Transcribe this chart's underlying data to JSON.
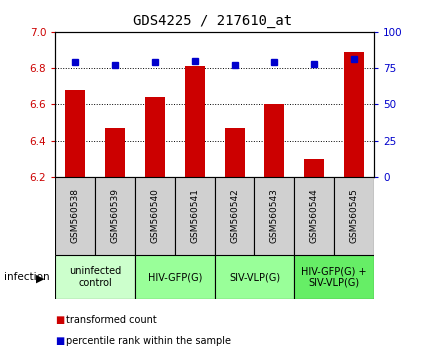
{
  "title": "GDS4225 / 217610_at",
  "samples": [
    "GSM560538",
    "GSM560539",
    "GSM560540",
    "GSM560541",
    "GSM560542",
    "GSM560543",
    "GSM560544",
    "GSM560545"
  ],
  "transformed_count": [
    6.68,
    6.47,
    6.64,
    6.81,
    6.47,
    6.6,
    6.3,
    6.89
  ],
  "percentile_rank": [
    79,
    77,
    79,
    80,
    77,
    79,
    78,
    81
  ],
  "ylim_left": [
    6.2,
    7.0
  ],
  "ylim_right": [
    0,
    100
  ],
  "yticks_left": [
    6.2,
    6.4,
    6.6,
    6.8,
    7.0
  ],
  "yticks_right": [
    0,
    25,
    50,
    75,
    100
  ],
  "bar_color": "#cc0000",
  "dot_color": "#0000cc",
  "groups": [
    {
      "label": "uninfected\ncontrol",
      "start": 0,
      "end": 2,
      "color": "#ccffcc"
    },
    {
      "label": "HIV-GFP(G)",
      "start": 2,
      "end": 4,
      "color": "#99ff99"
    },
    {
      "label": "SIV-VLP(G)",
      "start": 4,
      "end": 6,
      "color": "#99ff99"
    },
    {
      "label": "HIV-GFP(G) +\nSIV-VLP(G)",
      "start": 6,
      "end": 8,
      "color": "#66ee66"
    }
  ],
  "infection_label": "infection",
  "legend_bar_label": "transformed count",
  "legend_dot_label": "percentile rank within the sample",
  "sample_box_color": "#d0d0d0",
  "title_fontsize": 10,
  "tick_fontsize": 7.5,
  "sample_fontsize": 6.5,
  "group_fontsize": 7,
  "legend_fontsize": 7
}
